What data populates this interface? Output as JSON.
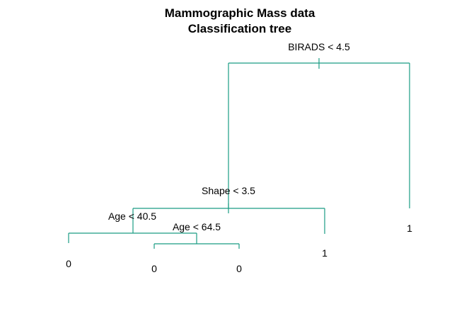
{
  "title_lines": [
    "Mammographic Mass data",
    "Classification tree"
  ],
  "colors": {
    "branch": "#1a9c84",
    "text": "#000000",
    "background": "#ffffff"
  },
  "tree": {
    "split": "BIRADS < 4.5",
    "left": {
      "split": "Shape < 3.5",
      "left": {
        "split": "Age < 40.5",
        "left": {
          "leaf": "0"
        },
        "right": {
          "split": "Age < 64.5",
          "left": {
            "leaf": "0"
          },
          "right": {
            "leaf": "0"
          }
        }
      },
      "right": {
        "leaf": "1"
      }
    },
    "right": {
      "leaf": "1"
    }
  }
}
